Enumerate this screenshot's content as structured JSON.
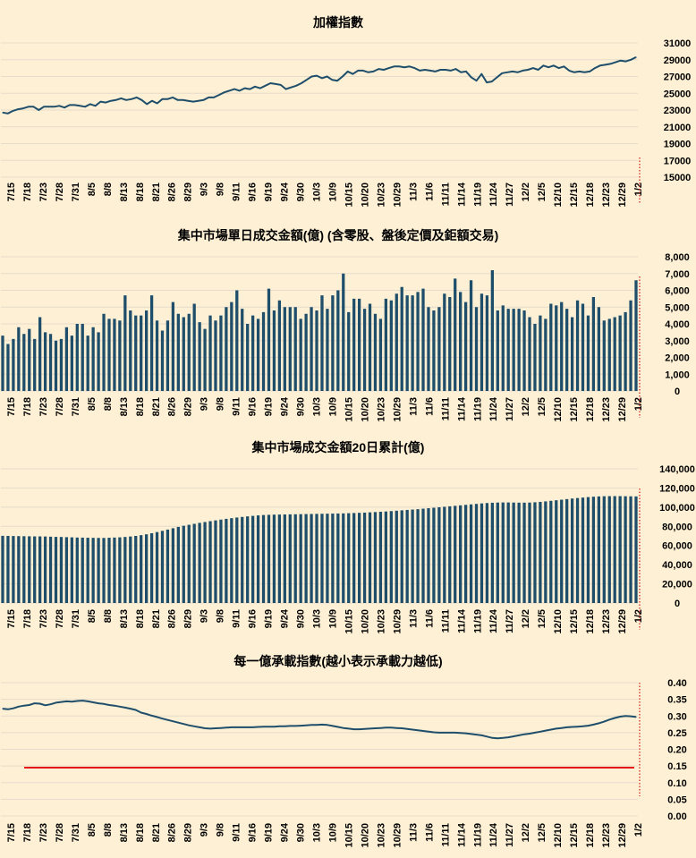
{
  "colors": {
    "background": "#fdf0d5",
    "series": "#1f4e6b",
    "bar": "#1f4e6b",
    "threshold": "#e8141c",
    "marker": "#d01818",
    "grid": "#e6dccb"
  },
  "x_labels": [
    "7/15",
    "7/18",
    "7/23",
    "7/28",
    "7/31",
    "8/5",
    "8/8",
    "8/13",
    "8/18",
    "8/21",
    "8/26",
    "8/29",
    "9/3",
    "9/8",
    "9/11",
    "9/16",
    "9/19",
    "9/24",
    "9/30",
    "10/3",
    "10/9",
    "10/15",
    "10/20",
    "10/23",
    "10/29",
    "11/3",
    "11/6",
    "11/11",
    "11/14",
    "11/19",
    "11/24",
    "11/27",
    "12/2",
    "12/5",
    "12/10",
    "12/15",
    "12/18",
    "12/23",
    "12/29",
    "1/2"
  ],
  "chart_data": [
    {
      "id": "taiex",
      "type": "line",
      "title": "加權指數",
      "ylim": [
        15000,
        31000
      ],
      "yticks": [
        15000,
        17000,
        19000,
        21000,
        23000,
        25000,
        27000,
        29000,
        31000
      ],
      "ytick_labels": [
        "15000",
        "17000",
        "19000",
        "21000",
        "23000",
        "25000",
        "27000",
        "29000",
        "31000"
      ],
      "series": [
        {
          "name": "加權指數",
          "values": [
            22700,
            22600,
            22900,
            23100,
            23200,
            23400,
            23400,
            23000,
            23400,
            23400,
            23400,
            23500,
            23300,
            23600,
            23600,
            23500,
            23400,
            23700,
            23500,
            24000,
            23900,
            24100,
            24200,
            24400,
            24200,
            24300,
            24500,
            24200,
            23700,
            24100,
            23800,
            24300,
            24300,
            24500,
            24200,
            24200,
            24100,
            24000,
            24100,
            24200,
            24500,
            24500,
            24800,
            25100,
            25300,
            25500,
            25300,
            25600,
            25500,
            25800,
            25600,
            25900,
            26200,
            26100,
            26000,
            25500,
            25700,
            25900,
            26200,
            26600,
            27000,
            27100,
            26800,
            27000,
            26600,
            26500,
            27000,
            27600,
            27300,
            27700,
            27700,
            27500,
            27600,
            27900,
            27800,
            28000,
            28200,
            28200,
            28100,
            28200,
            28000,
            27700,
            27800,
            27700,
            27600,
            27800,
            27800,
            27700,
            27900,
            27500,
            27600,
            26900,
            26500,
            27300,
            26300,
            26400,
            26900,
            27400,
            27500,
            27600,
            27500,
            27700,
            27800,
            28000,
            27800,
            28300,
            28100,
            28300,
            28000,
            28200,
            27700,
            27500,
            27600,
            27500,
            27600,
            28000,
            28300,
            28400,
            28500,
            28700,
            28900,
            28800,
            29000,
            29300
          ]
        }
      ]
    },
    {
      "id": "daily-volume",
      "type": "bar",
      "title": "集中市場單日成交金額(億) (含零股、盤後定價及鉅額交易)",
      "ylim": [
        0,
        8000
      ],
      "yticks": [
        0,
        1000,
        2000,
        3000,
        4000,
        5000,
        6000,
        7000,
        8000
      ],
      "ytick_labels": [
        "0",
        "1,000",
        "2,000",
        "3,000",
        "4,000",
        "5,000",
        "6,000",
        "7,000",
        "8,000"
      ],
      "series": [
        {
          "name": "單日成交金額",
          "values": [
            3300,
            2800,
            3100,
            3800,
            3400,
            3700,
            3100,
            4400,
            3500,
            3400,
            3000,
            3100,
            3800,
            3300,
            4000,
            4000,
            3300,
            3800,
            3500,
            4600,
            4300,
            4300,
            4200,
            5700,
            4800,
            4500,
            4500,
            4800,
            5700,
            4200,
            3600,
            4200,
            5300,
            4600,
            4400,
            4600,
            5200,
            4100,
            3700,
            4500,
            4200,
            4500,
            5000,
            5300,
            6000,
            4900,
            4000,
            4500,
            4300,
            4700,
            6100,
            4800,
            5400,
            5000,
            5000,
            5000,
            4300,
            4600,
            5000,
            4800,
            5700,
            4900,
            5700,
            6000,
            7000,
            4700,
            5500,
            5500,
            4900,
            5200,
            4600,
            4300,
            5500,
            5400,
            5800,
            6200,
            5700,
            5700,
            5900,
            6100,
            5000,
            4800,
            5000,
            5800,
            5600,
            6700,
            5900,
            5300,
            6600,
            5000,
            5800,
            5700,
            7200,
            4800,
            5100,
            4900,
            4900,
            4900,
            4800,
            4400,
            4000,
            4500,
            4300,
            5200,
            5100,
            5300,
            4900,
            4400,
            5400,
            5200,
            4500,
            5600,
            5000,
            4200,
            4300,
            4400,
            4500,
            4700,
            5400,
            6600
          ]
        }
      ]
    },
    {
      "id": "volume-20d",
      "type": "bar",
      "title": "集中市場成交金額20日累計(億)",
      "ylim": [
        0,
        140000
      ],
      "yticks": [
        0,
        20000,
        40000,
        60000,
        80000,
        100000,
        120000,
        140000
      ],
      "ytick_labels": [
        "0",
        "20,000",
        "40,000",
        "60,000",
        "80,000",
        "100,000",
        "120,000",
        "140,000"
      ],
      "series": [
        {
          "name": "20日累計成交金額",
          "values": [
            70100,
            70000,
            69900,
            69800,
            69700,
            69600,
            69500,
            69500,
            69400,
            69200,
            69000,
            68900,
            68700,
            68500,
            68300,
            68200,
            68100,
            68000,
            67900,
            67900,
            68100,
            68300,
            68500,
            68900,
            69400,
            70000,
            70800,
            71700,
            72800,
            74000,
            75300,
            76600,
            78000,
            79400,
            80600,
            81600,
            82600,
            83600,
            84500,
            85400,
            86200,
            87000,
            87800,
            88500,
            89200,
            89800,
            90400,
            90900,
            91400,
            91800,
            92000,
            92200,
            92300,
            92400,
            92500,
            92600,
            92700,
            92800,
            92900,
            93000,
            93100,
            93200,
            93300,
            93400,
            93500,
            93700,
            93900,
            94100,
            94300,
            94600,
            94900,
            95200,
            95500,
            95900,
            96300,
            96700,
            97100,
            97500,
            97900,
            98400,
            98900,
            99400,
            99900,
            100400,
            100900,
            101400,
            101900,
            102400,
            102900,
            103400,
            103900,
            104300,
            104600,
            104800,
            104900,
            104900,
            104800,
            104700,
            104700,
            104800,
            105100,
            105500,
            106000,
            106600,
            107200,
            107800,
            108400,
            109000,
            109500,
            110000,
            110500,
            110900,
            111200,
            111400,
            111500,
            111500,
            111500,
            111400,
            111300,
            111200
          ]
        }
      ]
    },
    {
      "id": "capacity-index",
      "type": "line",
      "title": "每一億承載指數(越小表示承載力越低)",
      "ylim": [
        0,
        0.4
      ],
      "yticks": [
        0,
        0.05,
        0.1,
        0.15,
        0.2,
        0.25,
        0.3,
        0.35,
        0.4
      ],
      "ytick_labels": [
        "0.00",
        "0.05",
        "0.10",
        "0.15",
        "0.20",
        "0.25",
        "0.30",
        "0.35",
        "0.40"
      ],
      "threshold": 0.145,
      "series": [
        {
          "name": "承載指數",
          "values": [
            0.322,
            0.32,
            0.323,
            0.328,
            0.331,
            0.333,
            0.338,
            0.337,
            0.332,
            0.335,
            0.34,
            0.342,
            0.344,
            0.343,
            0.345,
            0.346,
            0.344,
            0.341,
            0.338,
            0.336,
            0.333,
            0.331,
            0.328,
            0.325,
            0.322,
            0.318,
            0.31,
            0.306,
            0.301,
            0.297,
            0.292,
            0.288,
            0.284,
            0.28,
            0.276,
            0.272,
            0.269,
            0.266,
            0.263,
            0.262,
            0.263,
            0.264,
            0.265,
            0.266,
            0.266,
            0.266,
            0.266,
            0.266,
            0.267,
            0.268,
            0.268,
            0.268,
            0.269,
            0.269,
            0.27,
            0.27,
            0.271,
            0.272,
            0.273,
            0.273,
            0.274,
            0.273,
            0.27,
            0.267,
            0.264,
            0.262,
            0.26,
            0.26,
            0.261,
            0.262,
            0.263,
            0.264,
            0.265,
            0.265,
            0.264,
            0.263,
            0.261,
            0.259,
            0.257,
            0.255,
            0.253,
            0.251,
            0.25,
            0.25,
            0.25,
            0.25,
            0.249,
            0.248,
            0.246,
            0.244,
            0.242,
            0.238,
            0.234,
            0.233,
            0.234,
            0.236,
            0.239,
            0.242,
            0.245,
            0.247,
            0.25,
            0.253,
            0.256,
            0.259,
            0.262,
            0.264,
            0.266,
            0.267,
            0.268,
            0.269,
            0.271,
            0.274,
            0.278,
            0.283,
            0.289,
            0.294,
            0.298,
            0.3,
            0.299,
            0.297
          ]
        }
      ]
    }
  ]
}
